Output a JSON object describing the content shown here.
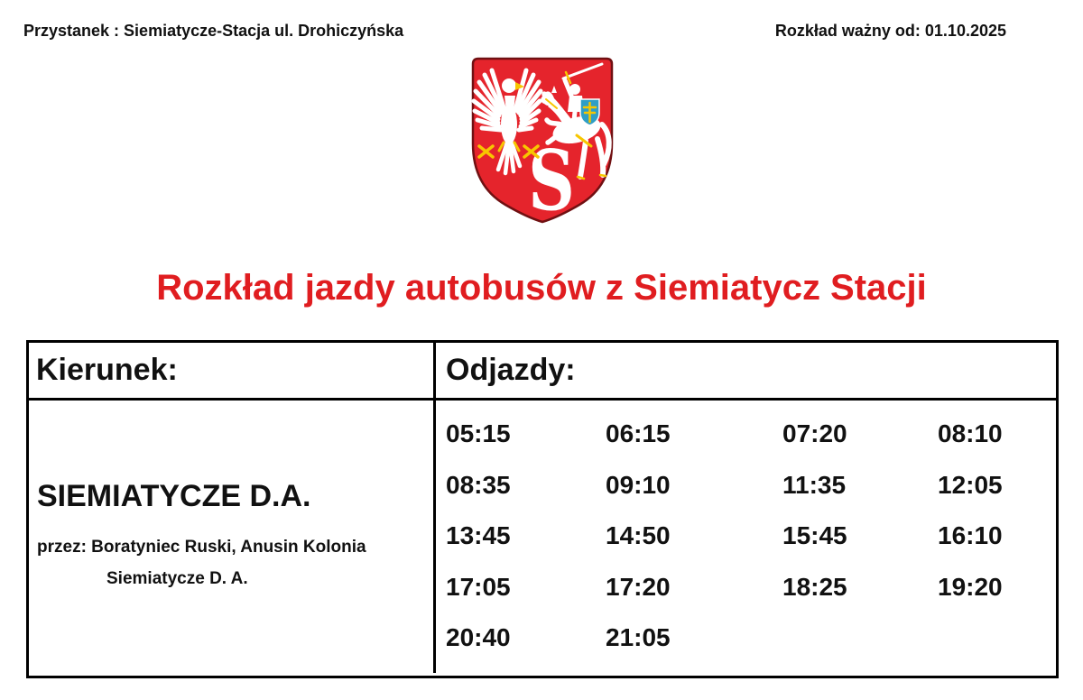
{
  "header": {
    "stop": "Przystanek : Siemiatycze-Stacja ul. Drohiczyńska",
    "valid_from": "Rozkład ważny od: 01.10.2025"
  },
  "crest": {
    "description": "coat-of-arms-red-shield-white-eagle-knight-letter-S",
    "letter": "S",
    "shield_red": "#e5242c",
    "knight_shield_blue": "#2e9ec6",
    "gold": "#f7c600"
  },
  "title": {
    "text": "Rozkład jazdy autobusów z Siemiatycz Stacji",
    "color": "#e01d20"
  },
  "table": {
    "direction_header": "Kierunek:",
    "departures_header": "Odjazdy:",
    "destination": "SIEMIATYCZE D.A.",
    "via_line1": "przez: Boratyniec Ruski, Anusin Kolonia",
    "via_line2": "Siemiatycze D. A.",
    "departures": [
      [
        "05:15",
        "06:15",
        "07:20",
        "08:10"
      ],
      [
        "08:35",
        "09:10",
        "11:35",
        "12:05"
      ],
      [
        "13:45",
        "14:50",
        "15:45",
        "16:10"
      ],
      [
        "17:05",
        "17:20",
        "18:25",
        "19:20"
      ],
      [
        "20:40",
        "21:05"
      ]
    ]
  }
}
